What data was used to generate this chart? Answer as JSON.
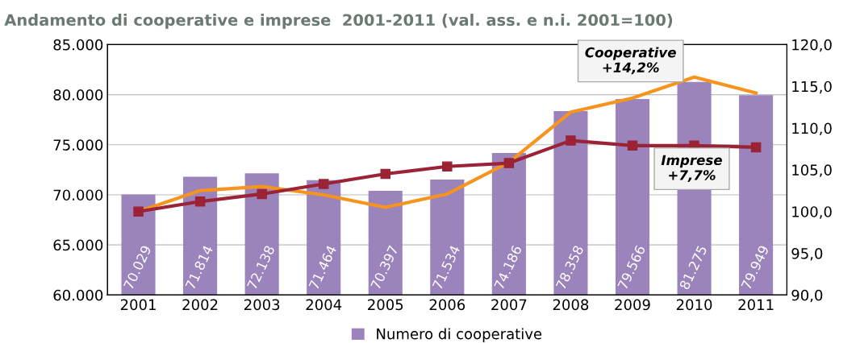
{
  "chart_data": {
    "type": "bar",
    "title": "Andamento di cooperative e imprese  2001-2011 (val. ass. e n.i. 2001=100)",
    "categories": [
      "2001",
      "2002",
      "2003",
      "2004",
      "2005",
      "2006",
      "2007",
      "2008",
      "2009",
      "2010",
      "2011"
    ],
    "series": [
      {
        "name": "Numero di cooperative",
        "color": "#9b83bb",
        "values": [
          70029,
          71814,
          72138,
          71464,
          70397,
          71534,
          74186,
          78358,
          79566,
          81275,
          79949
        ],
        "value_labels": [
          "70.029",
          "71.814",
          "72.138",
          "71.464",
          "70.397",
          "71.534",
          "74.186",
          "78.358",
          "79.566",
          "81.275",
          "79.949"
        ]
      },
      {
        "type": "line",
        "axis": "y2",
        "color": "#f7941d",
        "marker": "none",
        "values": [
          100,
          102.5,
          103.0,
          102.0,
          100.5,
          102.1,
          105.9,
          111.9,
          113.6,
          116.1,
          114.2
        ]
      },
      {
        "type": "line",
        "axis": "y2",
        "color": "#9b2335",
        "marker": "square",
        "values": [
          100,
          101.2,
          102.1,
          103.3,
          104.5,
          105.4,
          105.8,
          108.5,
          107.9,
          107.9,
          107.7
        ]
      }
    ],
    "ylim": [
      60000,
      85000
    ],
    "yticks": [
      {
        "value": 60000,
        "label": "60.000"
      },
      {
        "value": 65000,
        "label": "65.000"
      },
      {
        "value": 70000,
        "label": "70.000"
      },
      {
        "value": 75000,
        "label": "75.000"
      },
      {
        "value": 80000,
        "label": "80.000"
      },
      {
        "value": 85000,
        "label": "85.000"
      }
    ],
    "y2lim": [
      90,
      120
    ],
    "y2ticks": [
      {
        "value": 90,
        "label": "90,0"
      },
      {
        "value": 95,
        "label": "95,0"
      },
      {
        "value": 100,
        "label": "100,0"
      },
      {
        "value": 105,
        "label": "105,0"
      },
      {
        "value": 110,
        "label": "110,0"
      },
      {
        "value": 115,
        "label": "115,0"
      },
      {
        "value": 120,
        "label": "120,0"
      }
    ],
    "annotations": [
      "Cooperative\n+14,2%",
      "Imprese\n+7,7%"
    ],
    "grid": "y",
    "legend": "bottom"
  }
}
